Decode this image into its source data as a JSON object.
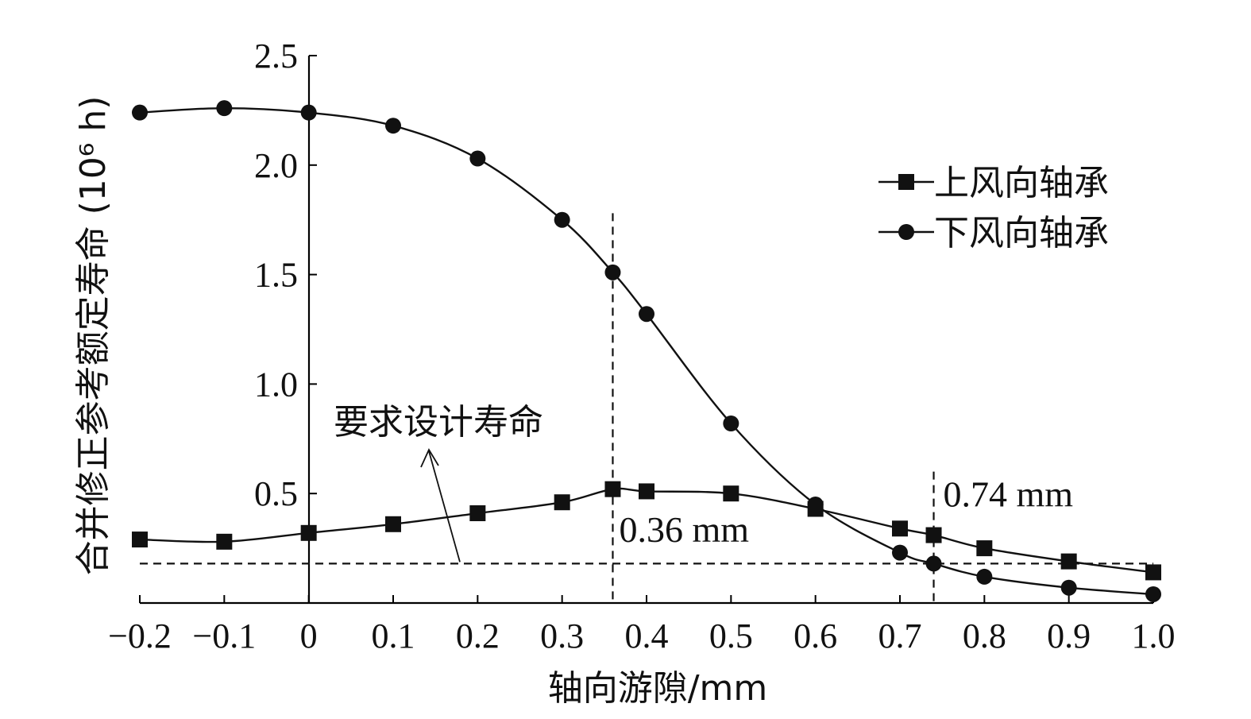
{
  "chart_data": {
    "type": "line",
    "ylabel": "合并修正参考额定寿命 (10⁶ h)",
    "xlabel": "轴向游隙/mm",
    "xlim": [
      -0.2,
      1.0
    ],
    "ylim": [
      0,
      2.5
    ],
    "x_ticks": [
      "−0.2",
      "−0.1",
      "0",
      "0.1",
      "0.2",
      "0.3",
      "0.4",
      "0.5",
      "0.6",
      "0.7",
      "0.8",
      "0.9",
      "1.0"
    ],
    "x_tick_values": [
      -0.2,
      -0.1,
      0,
      0.1,
      0.2,
      0.3,
      0.4,
      0.5,
      0.6,
      0.7,
      0.8,
      0.9,
      1.0
    ],
    "y_ticks": [
      "0.5",
      "1.0",
      "1.5",
      "2.0",
      "2.5"
    ],
    "y_tick_values": [
      0.5,
      1.0,
      1.5,
      2.0,
      2.5
    ],
    "x": [
      -0.2,
      -0.1,
      0,
      0.1,
      0.2,
      0.3,
      0.36,
      0.4,
      0.5,
      0.6,
      0.7,
      0.74,
      0.8,
      0.9,
      1.0
    ],
    "series": [
      {
        "name": "上风向轴承",
        "marker": "square",
        "values": [
          0.29,
          0.28,
          0.32,
          0.36,
          0.41,
          0.46,
          0.52,
          0.51,
          0.5,
          0.43,
          0.34,
          0.31,
          0.25,
          0.19,
          0.14
        ]
      },
      {
        "name": "下风向轴承",
        "marker": "circle",
        "values": [
          2.24,
          2.26,
          2.24,
          2.18,
          2.03,
          1.75,
          1.51,
          1.32,
          0.82,
          0.45,
          0.23,
          0.18,
          0.12,
          0.07,
          0.04
        ]
      }
    ],
    "reference_line": {
      "label": "要求设计寿命",
      "y": 0.18
    },
    "vertical_markers": [
      {
        "x": 0.36,
        "label": "0.36 mm"
      },
      {
        "x": 0.74,
        "label": "0.74 mm"
      }
    ],
    "legend_position": "top-right",
    "grid": false
  },
  "colors": {
    "line": "#111111",
    "background": "#ffffff"
  }
}
